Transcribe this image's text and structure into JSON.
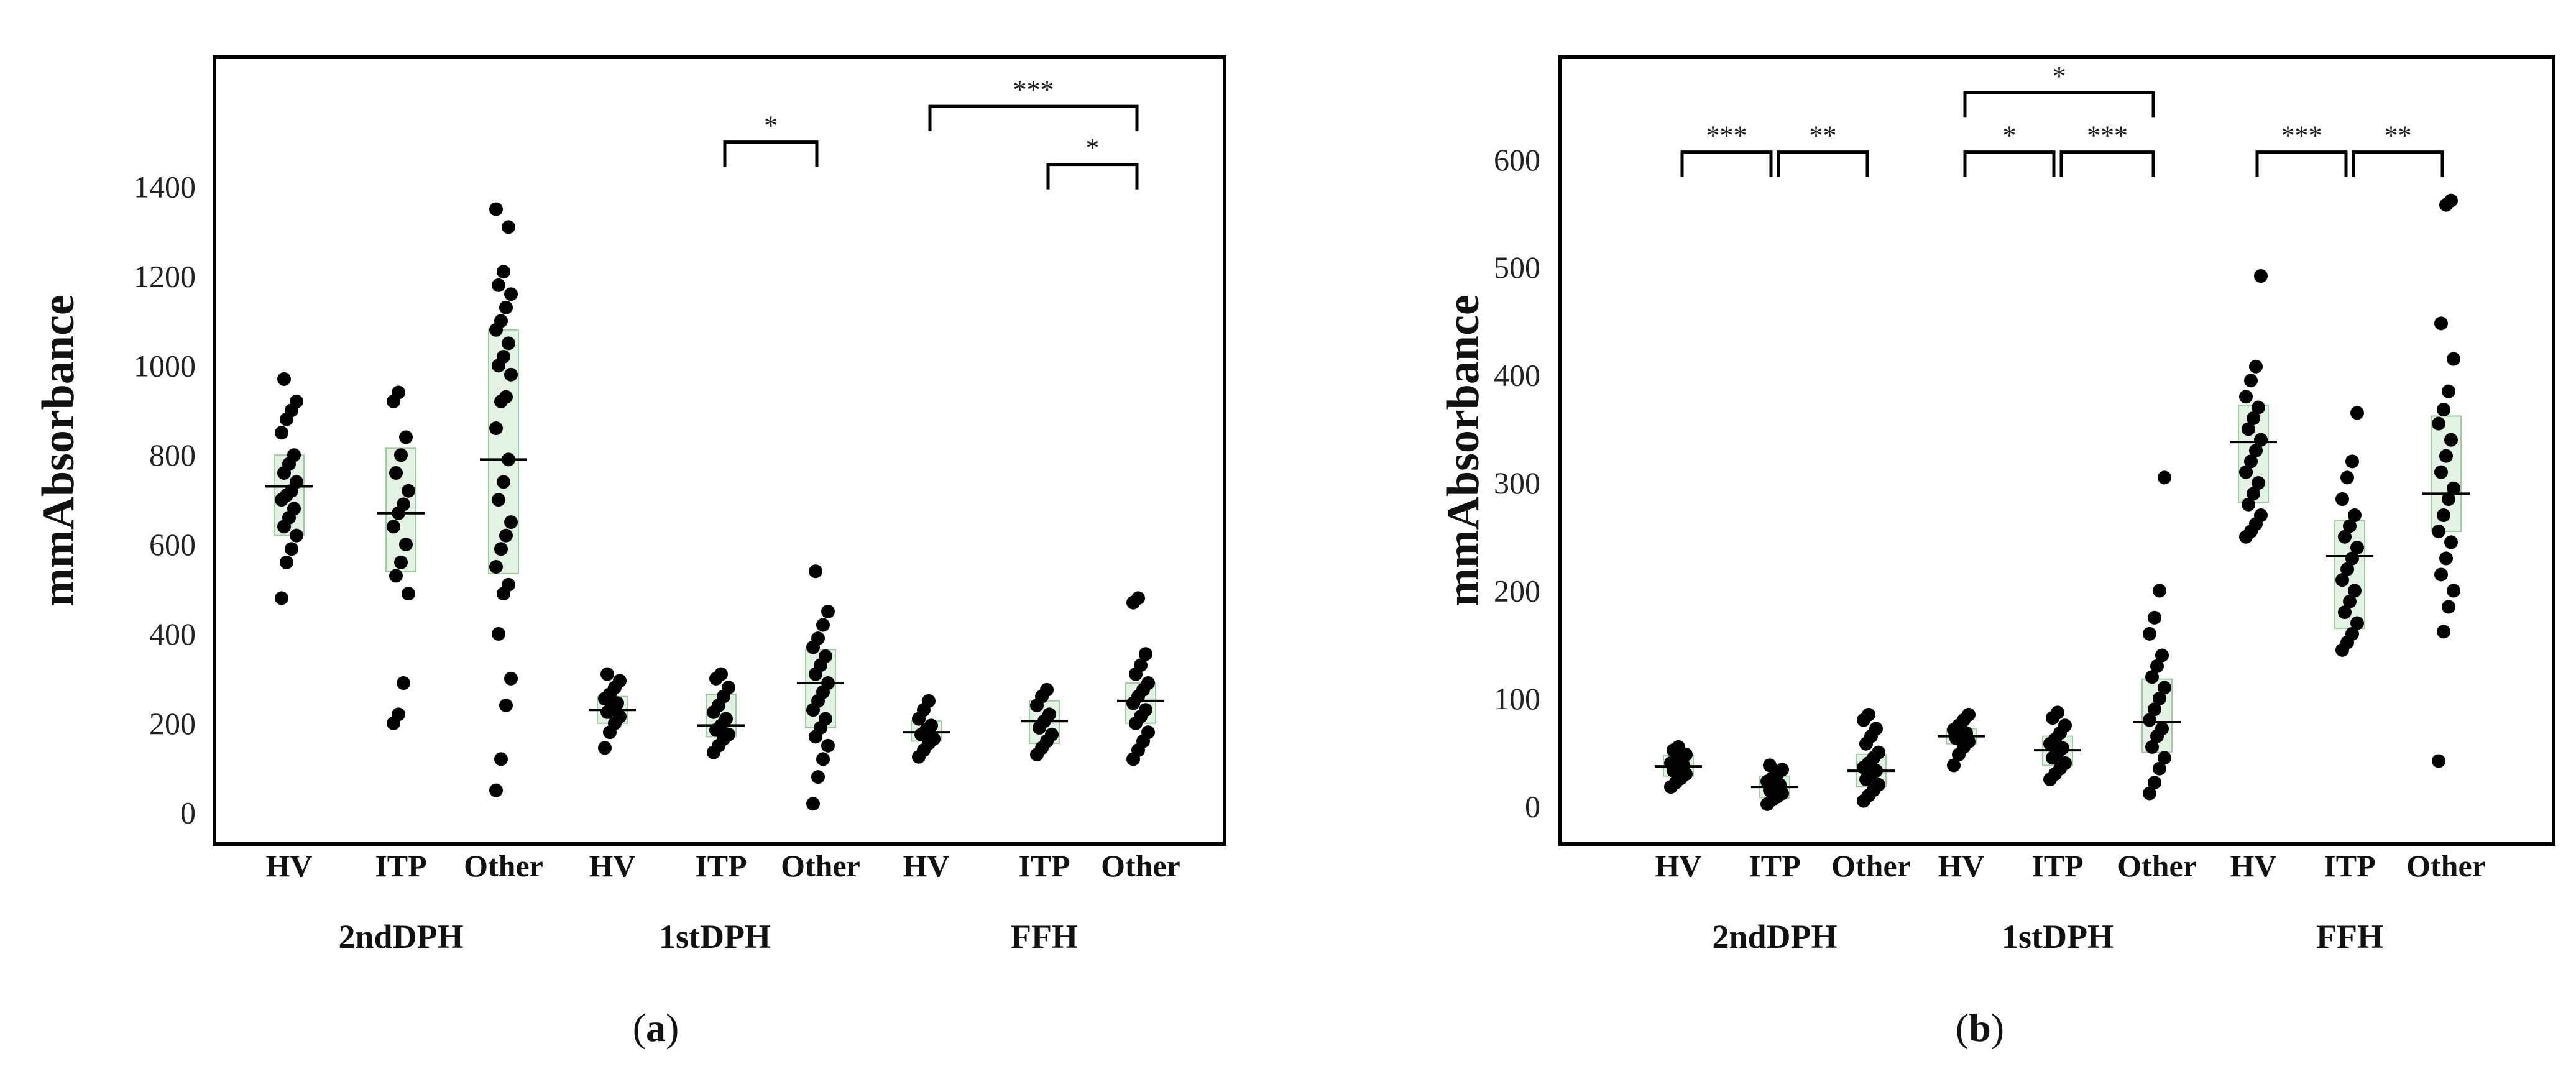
{
  "chart_data": [
    {
      "panel_label": "a",
      "type": "scatter",
      "ylabel": "mmAbsorbance",
      "ylim": [
        -70,
        1690
      ],
      "yticks": [
        0,
        200,
        400,
        600,
        800,
        1000,
        1200,
        1400
      ],
      "groups": [
        {
          "name": "2ndDPH",
          "categories": [
            "HV",
            "ITP",
            "Other"
          ]
        },
        {
          "name": "1stDPH",
          "categories": [
            "HV",
            "ITP",
            "Other"
          ]
        },
        {
          "name": "FFH",
          "categories": [
            "HV",
            "ITP",
            "Other"
          ]
        }
      ],
      "series": [
        {
          "group": "2ndDPH",
          "category": "HV",
          "median": 730,
          "q1": 620,
          "q3": 800,
          "points": [
            480,
            560,
            590,
            620,
            640,
            660,
            680,
            700,
            710,
            720,
            740,
            760,
            780,
            800,
            850,
            880,
            900,
            920,
            970
          ]
        },
        {
          "group": "2ndDPH",
          "category": "ITP",
          "median": 670,
          "q1": 540,
          "q3": 815,
          "points": [
            200,
            220,
            290,
            490,
            530,
            560,
            600,
            640,
            670,
            690,
            720,
            760,
            800,
            840,
            920,
            940
          ]
        },
        {
          "group": "2ndDPH",
          "category": "Other",
          "median": 790,
          "q1": 535,
          "q3": 1080,
          "points": [
            50,
            120,
            240,
            300,
            400,
            490,
            510,
            550,
            590,
            620,
            650,
            700,
            740,
            790,
            860,
            920,
            930,
            980,
            1000,
            1020,
            1050,
            1080,
            1100,
            1130,
            1160,
            1180,
            1210,
            1310,
            1350
          ]
        },
        {
          "group": "1stDPH",
          "category": "HV",
          "median": 230,
          "q1": 200,
          "q3": 260,
          "points": [
            145,
            180,
            200,
            215,
            225,
            235,
            245,
            255,
            265,
            280,
            295,
            310
          ]
        },
        {
          "group": "1stDPH",
          "category": "ITP",
          "median": 195,
          "q1": 170,
          "q3": 265,
          "points": [
            135,
            150,
            165,
            175,
            185,
            195,
            210,
            225,
            240,
            260,
            280,
            300,
            310
          ]
        },
        {
          "group": "1stDPH",
          "category": "Other",
          "median": 290,
          "q1": 190,
          "q3": 365,
          "points": [
            20,
            80,
            120,
            150,
            170,
            190,
            210,
            230,
            250,
            270,
            290,
            310,
            330,
            350,
            370,
            390,
            420,
            450,
            540
          ]
        },
        {
          "group": "FFH",
          "category": "HV",
          "median": 180,
          "q1": 160,
          "q3": 205,
          "points": [
            125,
            140,
            155,
            165,
            175,
            185,
            195,
            210,
            230,
            250
          ]
        },
        {
          "group": "FFH",
          "category": "ITP",
          "median": 205,
          "q1": 155,
          "q3": 250,
          "points": [
            130,
            145,
            160,
            175,
            190,
            205,
            220,
            240,
            260,
            275
          ]
        },
        {
          "group": "FFH",
          "category": "Other",
          "median": 250,
          "q1": 200,
          "q3": 290,
          "points": [
            120,
            140,
            160,
            180,
            200,
            215,
            230,
            245,
            260,
            275,
            290,
            310,
            330,
            355,
            470,
            480
          ]
        }
      ],
      "brackets": [
        {
          "from": [
            1,
            1
          ],
          "to": [
            1,
            2
          ],
          "level": 1500,
          "label": "*"
        },
        {
          "from": [
            2,
            0
          ],
          "to": [
            2,
            2
          ],
          "level": 1580,
          "label": "***"
        },
        {
          "from": [
            2,
            1
          ],
          "to": [
            2,
            2
          ],
          "level": 1450,
          "label": "*"
        }
      ]
    },
    {
      "panel_label": "b",
      "type": "scatter",
      "ylabel": "mmAbsorbance",
      "ylim": [
        -35,
        695
      ],
      "yticks": [
        0,
        100,
        200,
        300,
        400,
        500,
        600
      ],
      "groups": [
        {
          "name": "2ndDPH",
          "categories": [
            "HV",
            "ITP",
            "Other"
          ]
        },
        {
          "name": "1stDPH",
          "categories": [
            "HV",
            "ITP",
            "Other"
          ]
        },
        {
          "name": "FFH",
          "categories": [
            "HV",
            "ITP",
            "Other"
          ]
        }
      ],
      "series": [
        {
          "group": "2ndDPH",
          "category": "HV",
          "median": 37,
          "q1": 28,
          "q3": 47,
          "points": [
            18,
            22,
            26,
            30,
            33,
            36,
            38,
            40,
            42,
            45,
            48,
            52,
            55
          ]
        },
        {
          "group": "2ndDPH",
          "category": "ITP",
          "median": 18,
          "q1": 8,
          "q3": 28,
          "points": [
            2,
            6,
            9,
            12,
            15,
            18,
            20,
            23,
            26,
            30,
            34,
            38
          ]
        },
        {
          "group": "2ndDPH",
          "category": "Other",
          "median": 33,
          "q1": 18,
          "q3": 48,
          "points": [
            5,
            10,
            15,
            20,
            25,
            30,
            33,
            36,
            40,
            45,
            50,
            58,
            65,
            72,
            80,
            85
          ]
        },
        {
          "group": "1stDPH",
          "category": "HV",
          "median": 65,
          "q1": 58,
          "q3": 72,
          "points": [
            38,
            48,
            55,
            60,
            63,
            66,
            68,
            71,
            75,
            80,
            85
          ]
        },
        {
          "group": "1stDPH",
          "category": "ITP",
          "median": 52,
          "q1": 38,
          "q3": 65,
          "points": [
            25,
            30,
            35,
            40,
            45,
            50,
            54,
            58,
            62,
            68,
            75,
            82,
            87
          ]
        },
        {
          "group": "1stDPH",
          "category": "Other",
          "median": 78,
          "q1": 50,
          "q3": 118,
          "points": [
            12,
            22,
            35,
            45,
            55,
            65,
            72,
            80,
            90,
            100,
            110,
            120,
            130,
            140,
            160,
            175,
            200,
            305
          ]
        },
        {
          "group": "FFH",
          "category": "HV",
          "median": 338,
          "q1": 282,
          "q3": 372,
          "points": [
            250,
            255,
            262,
            270,
            280,
            290,
            300,
            310,
            320,
            330,
            340,
            350,
            360,
            370,
            380,
            395,
            408,
            492
          ]
        },
        {
          "group": "FFH",
          "category": "ITP",
          "median": 232,
          "q1": 165,
          "q3": 265,
          "points": [
            145,
            152,
            160,
            170,
            180,
            190,
            200,
            210,
            220,
            230,
            240,
            250,
            260,
            270,
            285,
            305,
            320,
            365
          ]
        },
        {
          "group": "FFH",
          "category": "Other",
          "median": 290,
          "q1": 255,
          "q3": 362,
          "points": [
            42,
            162,
            185,
            200,
            215,
            230,
            245,
            255,
            270,
            285,
            295,
            310,
            325,
            340,
            355,
            368,
            385,
            415,
            448,
            558,
            562
          ]
        }
      ],
      "brackets": [
        {
          "from": [
            0,
            0
          ],
          "to": [
            0,
            1
          ],
          "level": 607,
          "label": "***"
        },
        {
          "from": [
            0,
            1
          ],
          "to": [
            0,
            2
          ],
          "level": 607,
          "label": "**"
        },
        {
          "from": [
            1,
            0
          ],
          "to": [
            1,
            2
          ],
          "level": 662,
          "label": "*"
        },
        {
          "from": [
            1,
            0
          ],
          "to": [
            1,
            1
          ],
          "level": 607,
          "label": "*"
        },
        {
          "from": [
            1,
            1
          ],
          "to": [
            1,
            2
          ],
          "level": 607,
          "label": "***"
        },
        {
          "from": [
            2,
            0
          ],
          "to": [
            2,
            1
          ],
          "level": 607,
          "label": "***"
        },
        {
          "from": [
            2,
            1
          ],
          "to": [
            2,
            2
          ],
          "level": 607,
          "label": "**"
        }
      ]
    }
  ]
}
